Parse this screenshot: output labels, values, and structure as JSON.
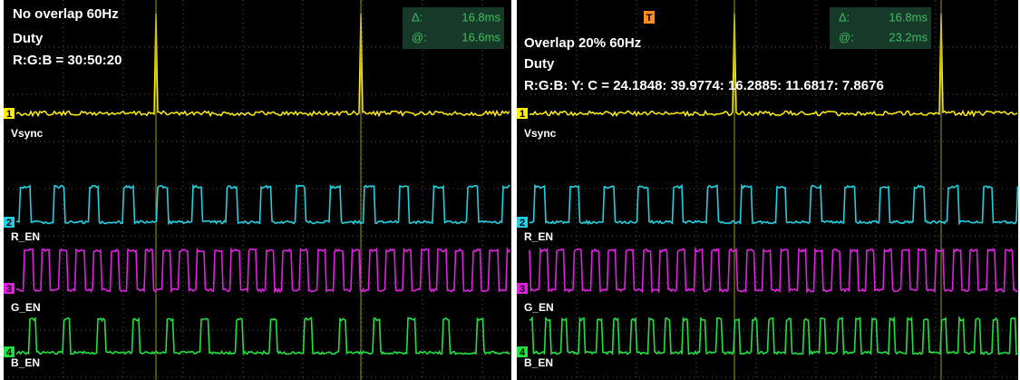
{
  "panels": [
    {
      "title": "No overlap 60Hz",
      "subtitle": "Duty",
      "ratio": "R:G:B = 30:50:20",
      "cursor": {
        "delta_label": "Δ:",
        "delta": "16.8ms",
        "at_label": "@:",
        "at": "16.6ms"
      },
      "channels": [
        {
          "number": "1",
          "name": "Vsync"
        },
        {
          "number": "2",
          "name": "R_EN"
        },
        {
          "number": "3",
          "name": "G_EN"
        },
        {
          "number": "4",
          "name": "B_EN"
        }
      ]
    },
    {
      "title": "Overlap 20% 60Hz",
      "subtitle": "Duty",
      "ratio": "R:G:B: Y: C = 24.1848: 39.9774: 16.2885: 11.6817: 7.8676",
      "cursor": {
        "delta_label": "Δ:",
        "delta": "16.8ms",
        "at_label": "@:",
        "at": "23.2ms"
      },
      "trigger": "T",
      "channels": [
        {
          "number": "1",
          "name": "Vsync"
        },
        {
          "number": "2",
          "name": "R_EN"
        },
        {
          "number": "3",
          "name": "G_EN"
        },
        {
          "number": "4",
          "name": "B_EN"
        }
      ]
    }
  ]
}
